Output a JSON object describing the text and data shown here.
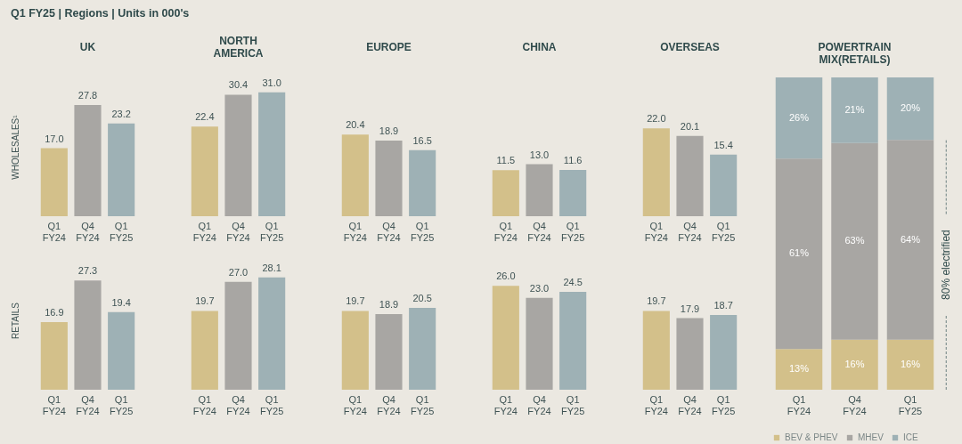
{
  "chart_data": [
    {
      "type": "other",
      "title": "Q1 FY25 | Regions | Units in 000's"
    },
    {
      "type": "bar",
      "title": "UK",
      "ylabel": "WHOLESALES¹",
      "categories": [
        "Q1 FY24",
        "Q4 FY24",
        "Q1 FY25"
      ],
      "values": [
        17.0,
        27.8,
        23.2
      ],
      "value_labels": [
        "17.0",
        "27.8",
        "23.2"
      ],
      "colors": [
        "#d3c08a",
        "#a8a6a3",
        "#9eb1b5"
      ],
      "tick_labels": "x"
    },
    {
      "type": "bar",
      "title": "NORTH AMERICA",
      "categories": [
        "Q1 FY24",
        "Q4 FY24",
        "Q1 FY25"
      ],
      "values": [
        22.4,
        30.4,
        31.0
      ],
      "value_labels": [
        "22.4",
        "30.4",
        "31.0"
      ],
      "colors": [
        "#d3c08a",
        "#a8a6a3",
        "#9eb1b5"
      ],
      "tick_labels": "x"
    },
    {
      "type": "bar",
      "title": "EUROPE",
      "categories": [
        "Q1 FY24",
        "Q4 FY24",
        "Q1 FY25"
      ],
      "values": [
        20.4,
        18.9,
        16.5
      ],
      "value_labels": [
        "20.4",
        "18.9",
        "16.5"
      ],
      "colors": [
        "#d3c08a",
        "#a8a6a3",
        "#9eb1b5"
      ],
      "tick_labels": "x"
    },
    {
      "type": "bar",
      "title": "CHINA",
      "categories": [
        "Q1 FY24",
        "Q4 FY24",
        "Q1 FY25"
      ],
      "values": [
        11.5,
        13.0,
        11.6
      ],
      "value_labels": [
        "11.5",
        "13.0",
        "11.6"
      ],
      "colors": [
        "#d3c08a",
        "#a8a6a3",
        "#9eb1b5"
      ],
      "tick_labels": "x"
    },
    {
      "type": "bar",
      "title": "OVERSEAS",
      "categories": [
        "Q1 FY24",
        "Q4 FY24",
        "Q1 FY25"
      ],
      "values": [
        22.0,
        20.1,
        15.4
      ],
      "value_labels": [
        "22.0",
        "20.1",
        "15.4"
      ],
      "colors": [
        "#d3c08a",
        "#a8a6a3",
        "#9eb1b5"
      ],
      "tick_labels": "x"
    },
    {
      "type": "bar",
      "ylabel": "RETAILS",
      "categories": [
        "Q1 FY24",
        "Q4 FY24",
        "Q1 FY25"
      ],
      "values": [
        16.9,
        27.3,
        19.4
      ],
      "value_labels": [
        "16.9",
        "27.3",
        "19.4"
      ],
      "colors": [
        "#d3c08a",
        "#a8a6a3",
        "#9eb1b5"
      ],
      "tick_labels": "x"
    },
    {
      "type": "bar",
      "categories": [
        "Q1 FY24",
        "Q4 FY24",
        "Q1 FY25"
      ],
      "values": [
        19.7,
        27.0,
        28.1
      ],
      "value_labels": [
        "19.7",
        "27.0",
        "28.1"
      ],
      "colors": [
        "#d3c08a",
        "#a8a6a3",
        "#9eb1b5"
      ],
      "tick_labels": "x"
    },
    {
      "type": "bar",
      "categories": [
        "Q1 FY24",
        "Q4 FY24",
        "Q1 FY25"
      ],
      "values": [
        19.7,
        18.9,
        20.5
      ],
      "value_labels": [
        "19.7",
        "18.9",
        "20.5"
      ],
      "colors": [
        "#d3c08a",
        "#a8a6a3",
        "#9eb1b5"
      ],
      "tick_labels": "x"
    },
    {
      "type": "bar",
      "categories": [
        "Q1 FY24",
        "Q4 FY24",
        "Q1 FY25"
      ],
      "values": [
        26.0,
        23.0,
        24.5
      ],
      "value_labels": [
        "26.0",
        "23.0",
        "24.5"
      ],
      "colors": [
        "#d3c08a",
        "#a8a6a3",
        "#9eb1b5"
      ],
      "tick_labels": "x"
    },
    {
      "type": "bar",
      "categories": [
        "Q1 FY24",
        "Q4 FY24",
        "Q1 FY25"
      ],
      "values": [
        19.7,
        17.9,
        18.7
      ],
      "value_labels": [
        "19.7",
        "17.9",
        "18.7"
      ],
      "colors": [
        "#d3c08a",
        "#a8a6a3",
        "#9eb1b5"
      ],
      "tick_labels": "x"
    },
    {
      "type": "bar",
      "title": "POWERTRAIN MIX(RETAILS)",
      "categories": [
        "Q1 FY24",
        "Q4 FY24",
        "Q1 FY25"
      ],
      "stacked": true,
      "tick_labels": "x",
      "legend": "bottom",
      "series": [
        {
          "name": "BEV & PHEV",
          "color": "#d3c08a",
          "values": [
            13,
            16,
            16
          ],
          "value_labels": [
            "13%",
            "16%",
            "16%"
          ]
        },
        {
          "name": "MHEV",
          "color": "#a8a6a3",
          "values": [
            61,
            63,
            64
          ],
          "value_labels": [
            "61%",
            "63%",
            "64%"
          ]
        },
        {
          "name": "ICE",
          "color": "#9eb1b5",
          "values": [
            26,
            21,
            20
          ],
          "value_labels": [
            "26%",
            "21%",
            "20%"
          ]
        }
      ],
      "annotations": [
        "80% electrified"
      ]
    }
  ]
}
